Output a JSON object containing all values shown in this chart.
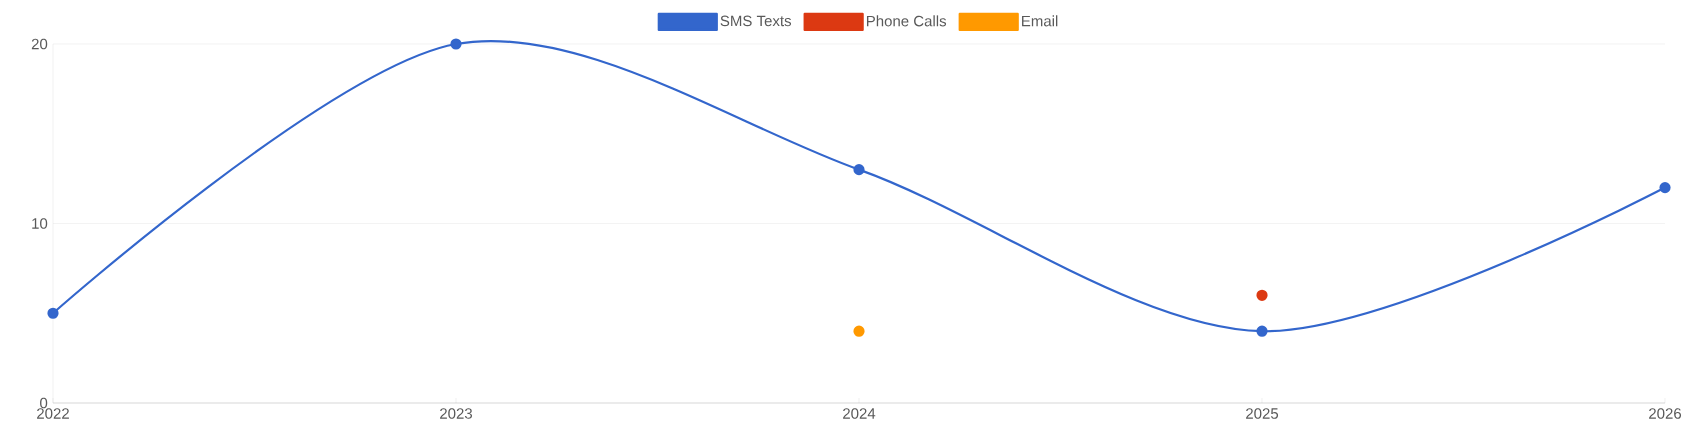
{
  "chart_data": {
    "type": "line",
    "categories": [
      "2022",
      "2023",
      "2024",
      "2025",
      "2026"
    ],
    "series": [
      {
        "name": "SMS Texts",
        "color": "#3366cc",
        "values": [
          5,
          20,
          13,
          4,
          12
        ]
      },
      {
        "name": "Phone Calls",
        "color": "#dc3912",
        "values": [
          null,
          null,
          null,
          6,
          null
        ]
      },
      {
        "name": "Email",
        "color": "#ff9900",
        "values": [
          null,
          null,
          4,
          null,
          null
        ]
      }
    ],
    "ylim": [
      0,
      20
    ],
    "yticks": [
      0,
      10,
      20
    ],
    "grid": "y",
    "legend": "top",
    "marker": "circle",
    "line_style": "solid"
  }
}
